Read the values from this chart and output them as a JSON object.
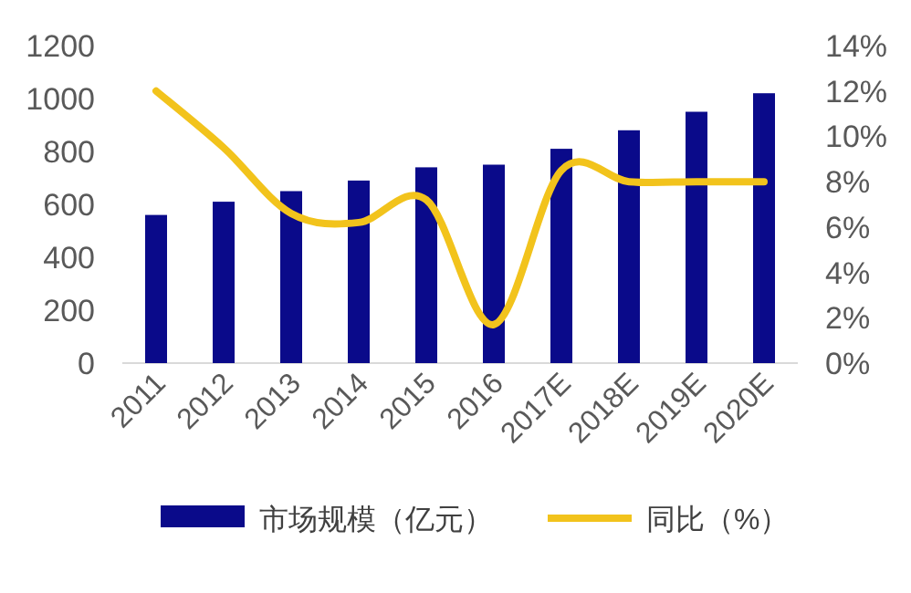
{
  "chart_data": {
    "type": "bar",
    "categories": [
      "2011",
      "2012",
      "2013",
      "2014",
      "2015",
      "2016",
      "2017E",
      "2018E",
      "2019E",
      "2020E"
    ],
    "series": [
      {
        "name": "市场规模（亿元）",
        "color": "#0a0a8a",
        "values": [
          560,
          610,
          650,
          690,
          740,
          750,
          810,
          880,
          950,
          1020
        ]
      },
      {
        "name": "同比（%）",
        "type": "line",
        "axis": "y2",
        "color": "#f2c31c",
        "values": [
          12.0,
          9.5,
          6.6,
          6.2,
          7.2,
          1.7,
          8.5,
          8,
          8,
          8
        ]
      }
    ],
    "ylim": [
      0,
      1200
    ],
    "yticks": [
      0,
      200,
      400,
      600,
      800,
      1000,
      1200
    ],
    "y2lim": [
      0,
      14
    ],
    "y2ticks": [
      {
        "value": 0,
        "label": "0%"
      },
      {
        "value": 2,
        "label": "2%"
      },
      {
        "value": 4,
        "label": "4%"
      },
      {
        "value": 6,
        "label": "6%"
      },
      {
        "value": 8,
        "label": "8%"
      },
      {
        "value": 10,
        "label": "10%"
      },
      {
        "value": 12,
        "label": "12%"
      },
      {
        "value": 14,
        "label": "14%"
      }
    ],
    "legend": "bottom",
    "grid": false
  }
}
